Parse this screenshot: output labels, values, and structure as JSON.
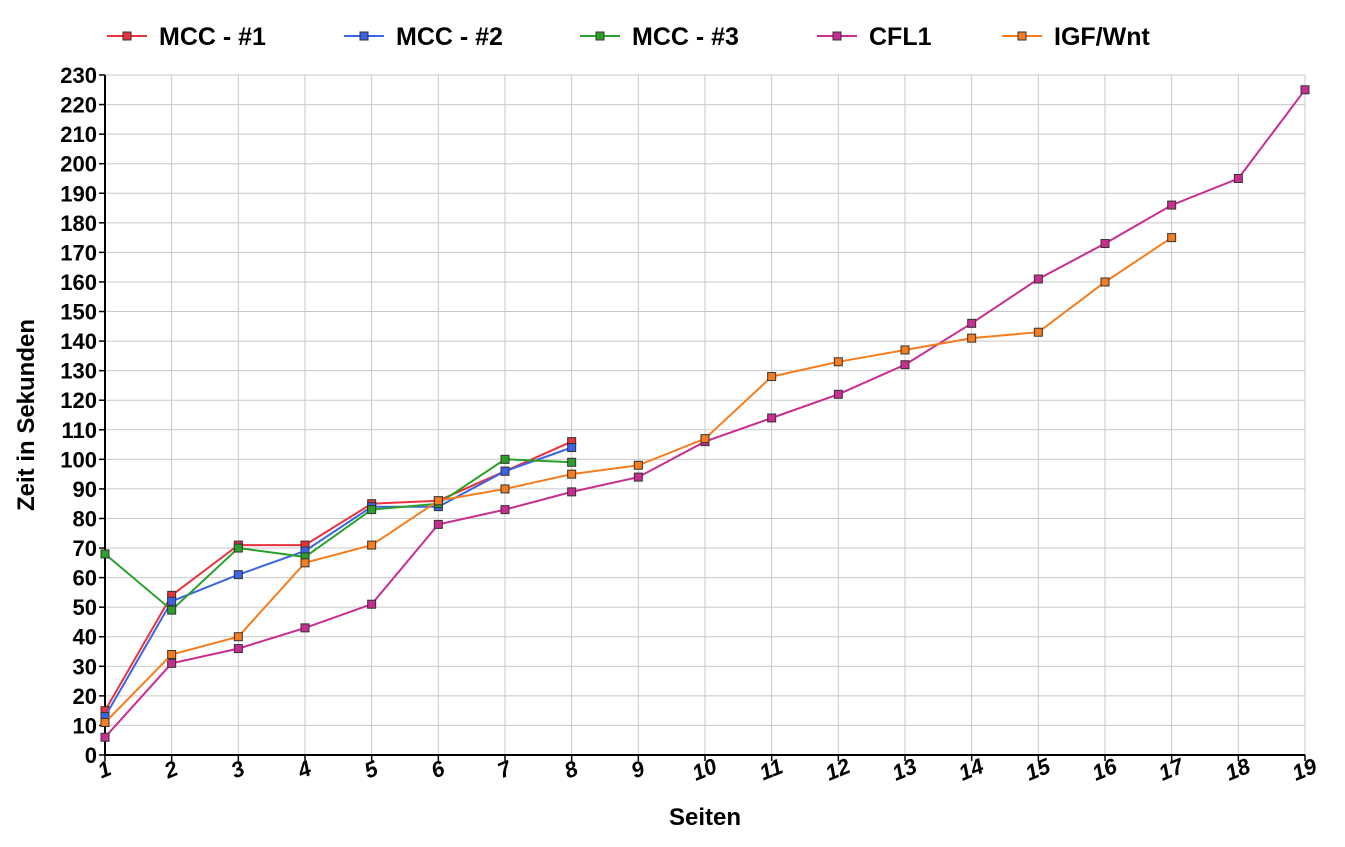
{
  "chart_data": {
    "type": "line",
    "xlabel": "Seiten",
    "ylabel": "Zeit in Sekunden",
    "xlim": [
      1,
      19
    ],
    "ylim": [
      0,
      230
    ],
    "x_ticks": [
      1,
      2,
      3,
      4,
      5,
      6,
      7,
      8,
      9,
      10,
      11,
      12,
      13,
      14,
      15,
      16,
      17,
      18,
      19
    ],
    "y_ticks": [
      0,
      10,
      20,
      30,
      40,
      50,
      60,
      70,
      80,
      90,
      100,
      110,
      120,
      130,
      140,
      150,
      160,
      170,
      180,
      190,
      200,
      210,
      220,
      230
    ],
    "grid": true,
    "legend_position": "top",
    "series": [
      {
        "name": "MCC - #1",
        "color": "#e8323c",
        "x": [
          1,
          2,
          3,
          4,
          5,
          6,
          7,
          8
        ],
        "values": [
          15,
          54,
          71,
          71,
          85,
          86,
          96,
          106
        ]
      },
      {
        "name": "MCC - #2",
        "color": "#3c64e6",
        "x": [
          1,
          2,
          3,
          4,
          5,
          6,
          7,
          8
        ],
        "values": [
          13,
          52,
          61,
          69,
          84,
          84,
          96,
          104
        ]
      },
      {
        "name": "MCC - #3",
        "color": "#2aa02a",
        "x": [
          1,
          2,
          3,
          4,
          5,
          6,
          7,
          8
        ],
        "values": [
          68,
          49,
          70,
          67,
          83,
          85,
          100,
          99
        ]
      },
      {
        "name": "CFL1",
        "color": "#c82d91",
        "x": [
          1,
          2,
          3,
          4,
          5,
          6,
          7,
          8,
          9,
          10,
          11,
          12,
          13,
          14,
          15,
          16,
          17,
          18,
          19
        ],
        "values": [
          6,
          31,
          36,
          43,
          51,
          78,
          83,
          89,
          94,
          106,
          114,
          122,
          132,
          146,
          161,
          173,
          186,
          195,
          225
        ]
      },
      {
        "name": "IGF/Wnt",
        "color": "#f57d1e",
        "x": [
          1,
          2,
          3,
          4,
          5,
          6,
          7,
          8,
          9,
          10,
          11,
          12,
          13,
          14,
          15,
          16,
          17
        ],
        "values": [
          11,
          34,
          40,
          65,
          71,
          86,
          90,
          95,
          98,
          107,
          128,
          133,
          137,
          141,
          143,
          160,
          175
        ]
      }
    ]
  }
}
